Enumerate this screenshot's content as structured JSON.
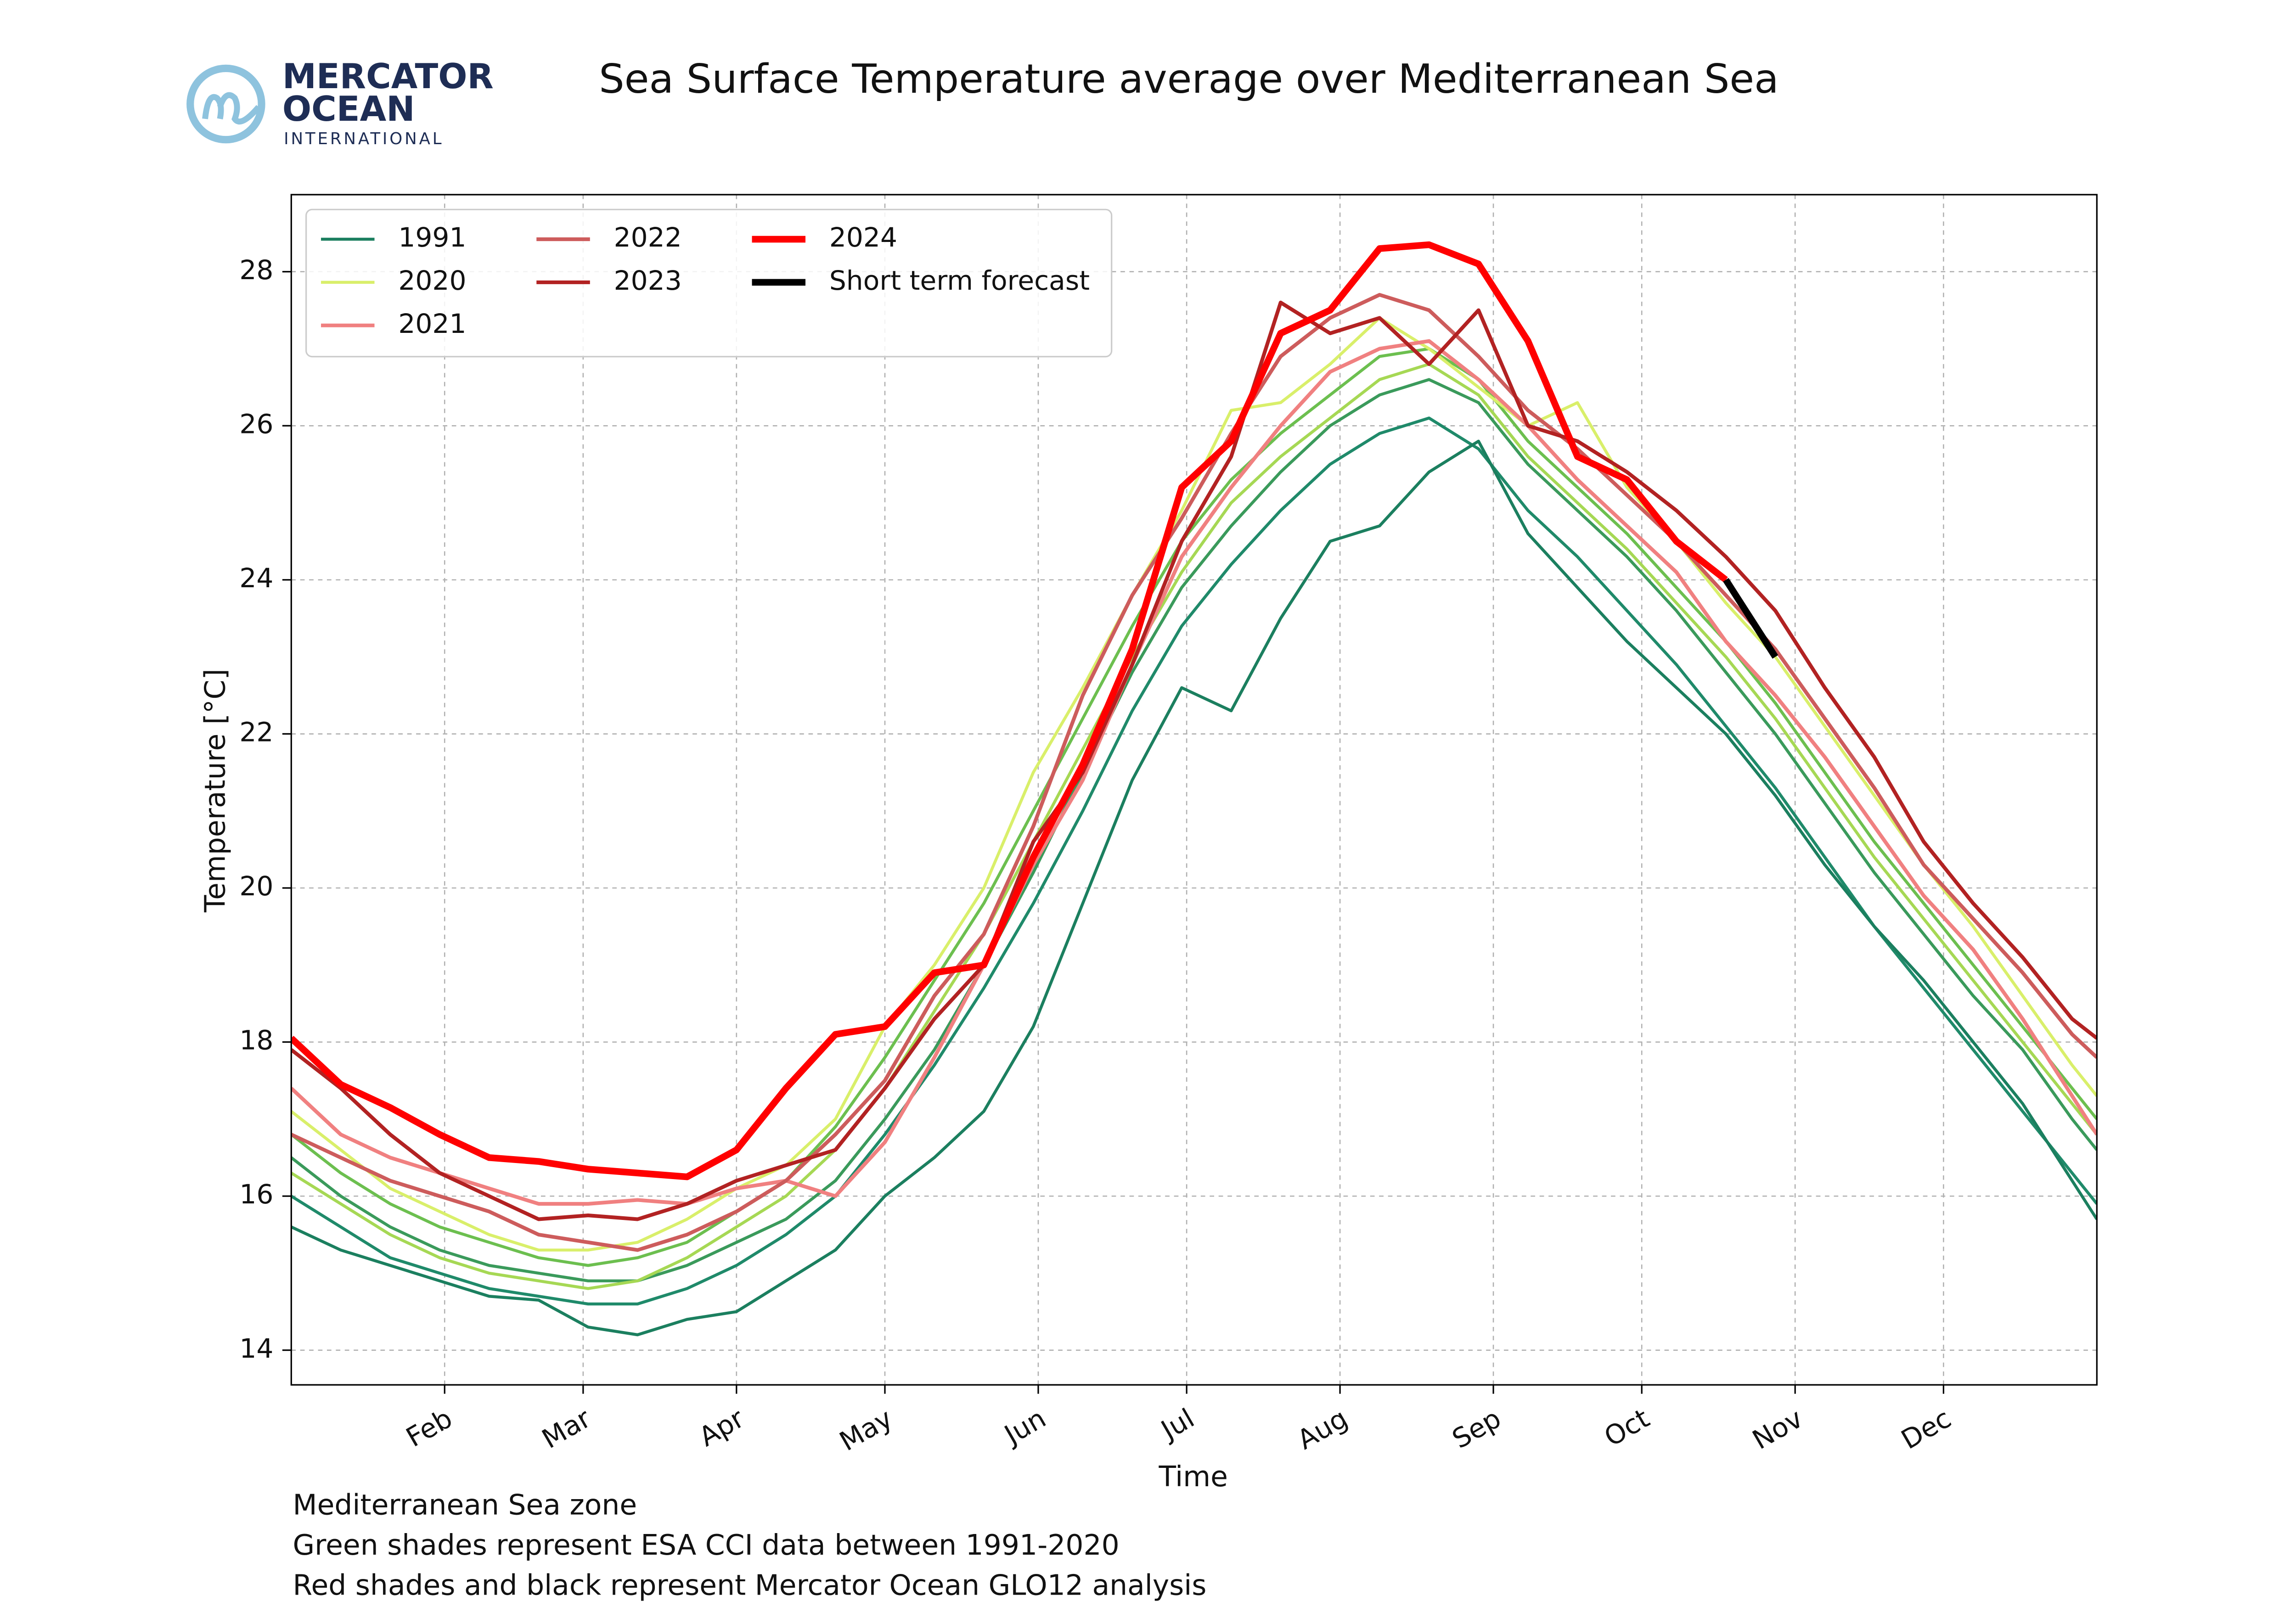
{
  "logo": {
    "line1": "MERCATOR",
    "line2": "OCEAN",
    "line3": "INTERNATIONAL"
  },
  "chart_data": {
    "type": "line",
    "title": "Sea Surface Temperature average over Mediterranean Sea",
    "xlabel": "Time",
    "ylabel": "Temperature [°C]",
    "notes": [
      "Mediterranean Sea zone",
      "Green shades represent ESA CCI data between 1991-2020",
      "Red shades and black represent Mercator Ocean GLO12 analysis"
    ],
    "x": [
      1,
      11,
      21,
      31,
      41,
      51,
      61,
      71,
      81,
      91,
      101,
      111,
      121,
      131,
      141,
      151,
      161,
      171,
      181,
      191,
      201,
      211,
      221,
      231,
      241,
      251,
      261,
      271,
      281,
      291,
      301,
      311,
      321,
      331,
      341,
      351,
      361,
      366
    ],
    "xlim": [
      1,
      366
    ],
    "xticks": [
      {
        "value": 32,
        "label": "Feb"
      },
      {
        "value": 60,
        "label": "Mar"
      },
      {
        "value": 91,
        "label": "Apr"
      },
      {
        "value": 121,
        "label": "May"
      },
      {
        "value": 152,
        "label": "Jun"
      },
      {
        "value": 182,
        "label": "Jul"
      },
      {
        "value": 213,
        "label": "Aug"
      },
      {
        "value": 244,
        "label": "Sep"
      },
      {
        "value": 274,
        "label": "Oct"
      },
      {
        "value": 305,
        "label": "Nov"
      },
      {
        "value": 335,
        "label": "Dec"
      }
    ],
    "ylim": [
      13.55,
      29.0
    ],
    "yticks": [
      14,
      16,
      18,
      20,
      22,
      24,
      26,
      28
    ],
    "grid": true,
    "legend": "upper left",
    "legend_columns": 3,
    "series": [
      {
        "color": "#3a9a5b",
        "width": 2,
        "values": [
          16.5,
          16.0,
          15.6,
          15.3,
          15.1,
          15.0,
          14.9,
          14.9,
          15.1,
          15.4,
          15.7,
          16.2,
          17.0,
          17.9,
          19.0,
          20.2,
          21.5,
          22.8,
          23.9,
          24.7,
          25.4,
          26.0,
          26.4,
          26.6,
          26.3,
          25.5,
          24.9,
          24.3,
          23.6,
          22.8,
          22.0,
          21.1,
          20.2,
          19.4,
          18.6,
          17.9,
          17.0,
          16.6
        ]
      },
      {
        "color": "#6cbf4f",
        "width": 2,
        "values": [
          16.8,
          16.3,
          15.9,
          15.6,
          15.4,
          15.2,
          15.1,
          15.2,
          15.4,
          15.8,
          16.2,
          16.9,
          17.8,
          18.8,
          19.8,
          21.0,
          22.2,
          23.4,
          24.5,
          25.3,
          25.9,
          26.4,
          26.9,
          27.0,
          26.6,
          25.8,
          25.2,
          24.6,
          23.9,
          23.2,
          22.4,
          21.5,
          20.6,
          19.8,
          19.0,
          18.2,
          17.4,
          17.0
        ]
      },
      {
        "color": "#a6d854",
        "width": 2,
        "values": [
          16.3,
          15.9,
          15.5,
          15.2,
          15.0,
          14.9,
          14.8,
          14.9,
          15.2,
          15.6,
          16.0,
          16.6,
          17.4,
          18.4,
          19.4,
          20.6,
          21.8,
          23.0,
          24.1,
          25.0,
          25.6,
          26.1,
          26.6,
          26.8,
          26.4,
          25.6,
          25.0,
          24.4,
          23.7,
          23.0,
          22.2,
          21.3,
          20.4,
          19.6,
          18.8,
          18.0,
          17.2,
          16.8
        ]
      },
      {
        "color": "#1f8a6a",
        "width": 2,
        "values": [
          16.0,
          15.6,
          15.2,
          15.0,
          14.8,
          14.7,
          14.6,
          14.6,
          14.8,
          15.1,
          15.5,
          16.0,
          16.8,
          17.7,
          18.7,
          19.8,
          21.0,
          22.3,
          23.4,
          24.2,
          24.9,
          25.5,
          25.9,
          26.1,
          25.7,
          24.9,
          24.3,
          23.6,
          22.9,
          22.1,
          21.3,
          20.4,
          19.5,
          18.7,
          17.9,
          17.1,
          16.3,
          15.9
        ]
      },
      {
        "name": "1991",
        "color": "#1b7f5f",
        "width": 2,
        "values": [
          15.6,
          15.3,
          15.1,
          14.9,
          14.7,
          14.65,
          14.3,
          14.2,
          14.4,
          14.5,
          14.9,
          15.3,
          16.0,
          16.5,
          17.1,
          18.2,
          19.8,
          21.4,
          22.6,
          22.3,
          23.5,
          24.5,
          24.7,
          25.4,
          25.8,
          24.6,
          23.9,
          23.2,
          22.6,
          22.0,
          21.2,
          20.3,
          19.5,
          18.8,
          18.0,
          17.2,
          16.2,
          15.7
        ]
      },
      {
        "name": "2020",
        "color": "#d9ef6a",
        "width": 2,
        "values": [
          17.1,
          16.6,
          16.1,
          15.8,
          15.5,
          15.3,
          15.3,
          15.4,
          15.7,
          16.1,
          16.4,
          17.0,
          18.2,
          19.0,
          20.0,
          21.5,
          22.6,
          23.8,
          24.9,
          26.2,
          26.3,
          26.8,
          27.4,
          27.0,
          26.5,
          26.0,
          26.3,
          25.2,
          24.5,
          23.7,
          23.0,
          22.1,
          21.2,
          20.3,
          19.5,
          18.6,
          17.7,
          17.3
        ]
      },
      {
        "name": "2021",
        "color": "#f08080",
        "width": 2.5,
        "values": [
          17.4,
          16.8,
          16.5,
          16.3,
          16.1,
          15.9,
          15.9,
          15.95,
          15.9,
          16.1,
          16.2,
          16.0,
          16.7,
          17.8,
          19.0,
          20.3,
          21.4,
          22.9,
          24.3,
          25.2,
          26.0,
          26.7,
          27.0,
          27.1,
          26.6,
          26.0,
          25.3,
          24.7,
          24.1,
          23.2,
          22.5,
          21.7,
          20.8,
          19.9,
          19.2,
          18.3,
          17.3,
          16.8
        ]
      },
      {
        "name": "2022",
        "color": "#cd5c5c",
        "width": 2.5,
        "values": [
          16.8,
          16.5,
          16.2,
          16.0,
          15.8,
          15.5,
          15.4,
          15.3,
          15.5,
          15.8,
          16.2,
          16.8,
          17.5,
          18.6,
          19.4,
          20.8,
          22.5,
          23.8,
          24.8,
          25.9,
          26.9,
          27.4,
          27.7,
          27.5,
          26.9,
          26.2,
          25.7,
          25.1,
          24.5,
          23.8,
          23.1,
          22.2,
          21.3,
          20.3,
          19.6,
          18.9,
          18.1,
          17.8
        ]
      },
      {
        "name": "2023",
        "color": "#b22222",
        "width": 2.5,
        "values": [
          17.9,
          17.4,
          16.8,
          16.3,
          16.0,
          15.7,
          15.75,
          15.7,
          15.9,
          16.2,
          16.4,
          16.6,
          17.4,
          18.3,
          19.0,
          20.6,
          21.5,
          22.9,
          24.5,
          25.6,
          27.6,
          27.2,
          27.4,
          26.8,
          27.5,
          26.0,
          25.8,
          25.4,
          24.9,
          24.3,
          23.6,
          22.6,
          21.7,
          20.6,
          19.8,
          19.1,
          18.3,
          18.05
        ]
      },
      {
        "name": "2024",
        "color": "#ff0000",
        "width": 4.5,
        "values": [
          18.05,
          17.45,
          17.15,
          16.8,
          16.5,
          16.45,
          16.35,
          16.3,
          16.25,
          16.6,
          17.4,
          18.1,
          18.2,
          18.9,
          19.0,
          20.4,
          21.6,
          23.1,
          25.2,
          25.8,
          27.2,
          27.5,
          28.3,
          28.35,
          28.1,
          27.1,
          25.6,
          25.3,
          24.5,
          24.0,
          null,
          null,
          null,
          null,
          null,
          null,
          null,
          null
        ]
      },
      {
        "name": "Short term forecast",
        "color": "#000000",
        "width": 4.5,
        "values": [
          null,
          null,
          null,
          null,
          null,
          null,
          null,
          null,
          null,
          null,
          null,
          null,
          null,
          null,
          null,
          null,
          null,
          null,
          null,
          null,
          null,
          null,
          null,
          null,
          null,
          null,
          null,
          null,
          null,
          24.0,
          23.0,
          null,
          null,
          null,
          null,
          null,
          null,
          null
        ]
      }
    ]
  }
}
